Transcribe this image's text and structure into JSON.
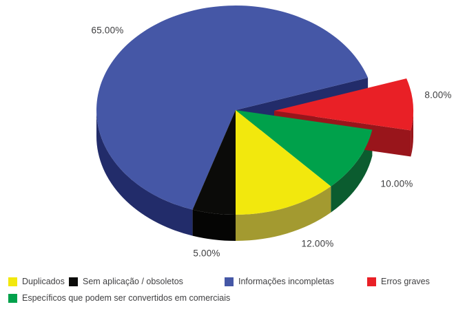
{
  "chart_data": {
    "type": "pie",
    "style": "3d-exploded",
    "title": "",
    "unit": "%",
    "slices": [
      {
        "label": "Informações incompletas",
        "value": 65,
        "pct_label": "65.00%",
        "color": "#4557A6",
        "dark": "#222C6A",
        "exploded": false
      },
      {
        "label": "Erros graves",
        "value": 8,
        "pct_label": "8.00%",
        "color": "#E92026",
        "dark": "#99151B",
        "exploded": true
      },
      {
        "label": "Específicos que podem ser convertidos em comerciais",
        "value": 10,
        "pct_label": "10.00%",
        "color": "#00A14B",
        "dark": "#0B5C2F",
        "exploded": false
      },
      {
        "label": "Duplicados",
        "value": 12,
        "pct_label": "12.00%",
        "color": "#F2E80D",
        "dark": "#A39A30",
        "exploded": false
      },
      {
        "label": "Sem aplicação / obsoletos",
        "value": 5,
        "pct_label": "5.00%",
        "color": "#0B0B09",
        "dark": "#050504",
        "exploded": false
      }
    ],
    "legend_position": "bottom"
  },
  "legend": {
    "items": [
      {
        "label": "Duplicados",
        "color": "#F2E80D"
      },
      {
        "label": "Sem aplicação / obsoletos",
        "color": "#0B0B09"
      },
      {
        "label": "Informações incompletas",
        "color": "#4557A6"
      },
      {
        "label": "Erros graves",
        "color": "#E92026"
      },
      {
        "label": "Específicos que podem ser convertidos em comerciais",
        "color": "#00A14B"
      }
    ]
  }
}
